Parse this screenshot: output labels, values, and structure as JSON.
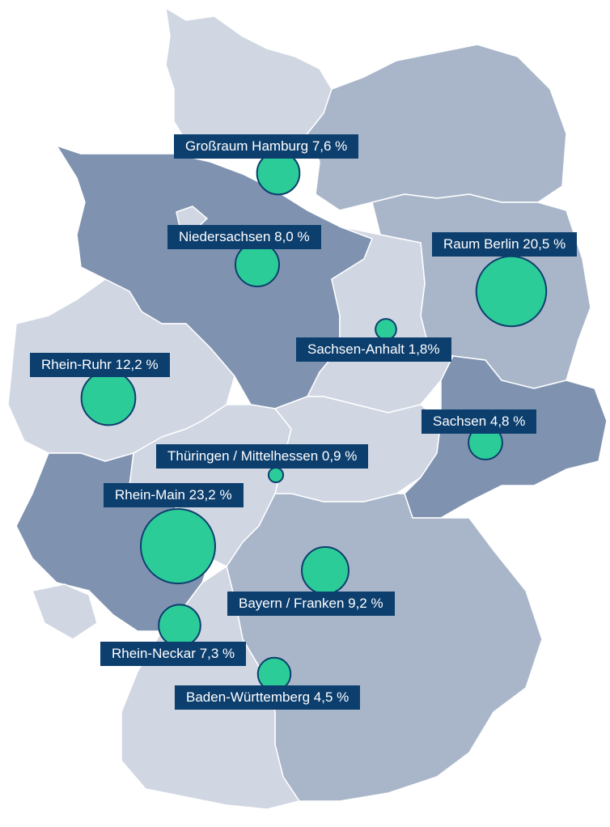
{
  "map": {
    "country": "Germany",
    "colors": {
      "state_light": "#d0d6e2",
      "state_mid": "#a9b6ca",
      "state_dark": "#7f93b1",
      "state_border": "#ffffff",
      "bubble_fill": "#2ccc98",
      "bubble_stroke": "#0d3f6e",
      "label_bg": "#0d3f6e",
      "label_text": "#ffffff"
    },
    "regions": [
      {
        "id": "grossraum-hamburg",
        "label": "Großraum Hamburg 7,6 %",
        "value": 7.6
      },
      {
        "id": "niedersachsen",
        "label": "Niedersachsen 8,0 %",
        "value": 8.0
      },
      {
        "id": "raum-berlin",
        "label": "Raum Berlin 20,5 %",
        "value": 20.5
      },
      {
        "id": "sachsen-anhalt",
        "label": "Sachsen-Anhalt 1,8%",
        "value": 1.8
      },
      {
        "id": "rhein-ruhr",
        "label": "Rhein-Ruhr 12,2 %",
        "value": 12.2
      },
      {
        "id": "sachsen",
        "label": "Sachsen 4,8 %",
        "value": 4.8
      },
      {
        "id": "thueringen-mittelhessen",
        "label": "Thüringen / Mittelhessen 0,9 %",
        "value": 0.9
      },
      {
        "id": "rhein-main",
        "label": "Rhein-Main 23,2 %",
        "value": 23.2
      },
      {
        "id": "bayern-franken",
        "label": "Bayern / Franken 9,2 %",
        "value": 9.2
      },
      {
        "id": "rhein-neckar",
        "label": "Rhein-Neckar 7,3 %",
        "value": 7.3
      },
      {
        "id": "baden-wuerttemberg",
        "label": "Baden-Württemberg 4,5 %",
        "value": 4.5
      }
    ]
  }
}
